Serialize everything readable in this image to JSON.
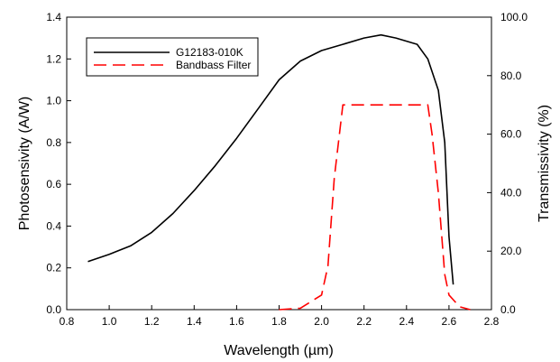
{
  "chart_data": {
    "type": "line",
    "xlabel": "Wavelength (µm)",
    "ylabel": "Photosensivity (A/W)",
    "y2label": "Transmissivity (%)",
    "xlim": [
      0.8,
      2.8
    ],
    "ylim": [
      0,
      1.4
    ],
    "y2lim": [
      0,
      100
    ],
    "x_ticks": [
      "0.8",
      "1.0",
      "1.2",
      "1.4",
      "1.6",
      "1.8",
      "2.0",
      "2.2",
      "2.4",
      "2.6",
      "2.8"
    ],
    "y_ticks": [
      "0.0",
      "0.2",
      "0.4",
      "0.6",
      "0.8",
      "1.0",
      "1.2",
      "1.4"
    ],
    "y2_ticks": [
      "0.0",
      "20.0",
      "40.0",
      "60.0",
      "80.0",
      "100.0"
    ],
    "grid": false,
    "legend_position": "top-left",
    "series": [
      {
        "name": "G12183-010K",
        "axis": "left",
        "color": "#000000",
        "style": "solid",
        "x": [
          0.9,
          1.0,
          1.1,
          1.2,
          1.3,
          1.4,
          1.5,
          1.6,
          1.7,
          1.8,
          1.9,
          2.0,
          2.1,
          2.2,
          2.28,
          2.35,
          2.45,
          2.5,
          2.55,
          2.58,
          2.6,
          2.62
        ],
        "y": [
          0.23,
          0.265,
          0.305,
          0.37,
          0.46,
          0.57,
          0.69,
          0.82,
          0.96,
          1.1,
          1.19,
          1.24,
          1.27,
          1.3,
          1.315,
          1.3,
          1.27,
          1.2,
          1.05,
          0.8,
          0.35,
          0.12
        ]
      },
      {
        "name": "Bandbass Filter",
        "axis": "right",
        "color": "#ff0000",
        "style": "dashed",
        "x": [
          1.8,
          1.9,
          2.0,
          2.03,
          2.06,
          2.1,
          2.2,
          2.3,
          2.4,
          2.5,
          2.52,
          2.55,
          2.58,
          2.6,
          2.65,
          2.7
        ],
        "y": [
          0,
          0.5,
          5,
          15,
          45,
          70,
          70,
          70,
          70,
          70,
          60,
          40,
          12,
          5,
          1,
          0
        ]
      }
    ]
  }
}
